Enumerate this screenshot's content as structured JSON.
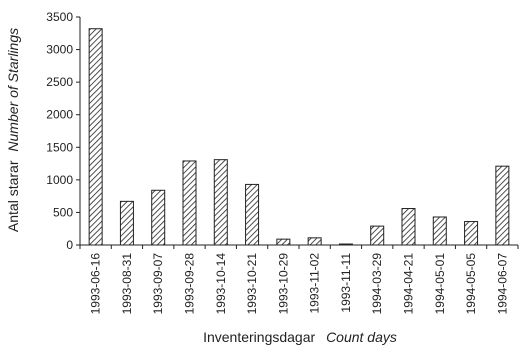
{
  "chart_data": {
    "type": "bar",
    "categories": [
      "1993-06-16",
      "1993-08-31",
      "1993-09-07",
      "1993-09-28",
      "1993-10-14",
      "1993-10-21",
      "1993-10-29",
      "1993-11-02",
      "1993-11-11",
      "1994-03-29",
      "1994-04-21",
      "1994-05-01",
      "1994-05-05",
      "1994-06-07"
    ],
    "values": [
      3320,
      670,
      840,
      1290,
      1310,
      930,
      90,
      110,
      15,
      290,
      560,
      430,
      360,
      1210
    ],
    "ylim": [
      0,
      3500
    ],
    "yticks": [
      "0",
      "500",
      "1000",
      "1500",
      "2000",
      "2500",
      "3000",
      "3500"
    ],
    "xlabel": {
      "plain": "Inventeringsdagar",
      "italic": "Count days"
    },
    "ylabel": {
      "plain": "Antal starar",
      "italic": "Number of Starlings"
    },
    "grid": false,
    "legend": false,
    "bar_fill": "diagonal-hatch",
    "colors": {
      "bar_edge": "#222222",
      "hatch": "#222222",
      "axis": "#222222"
    }
  }
}
